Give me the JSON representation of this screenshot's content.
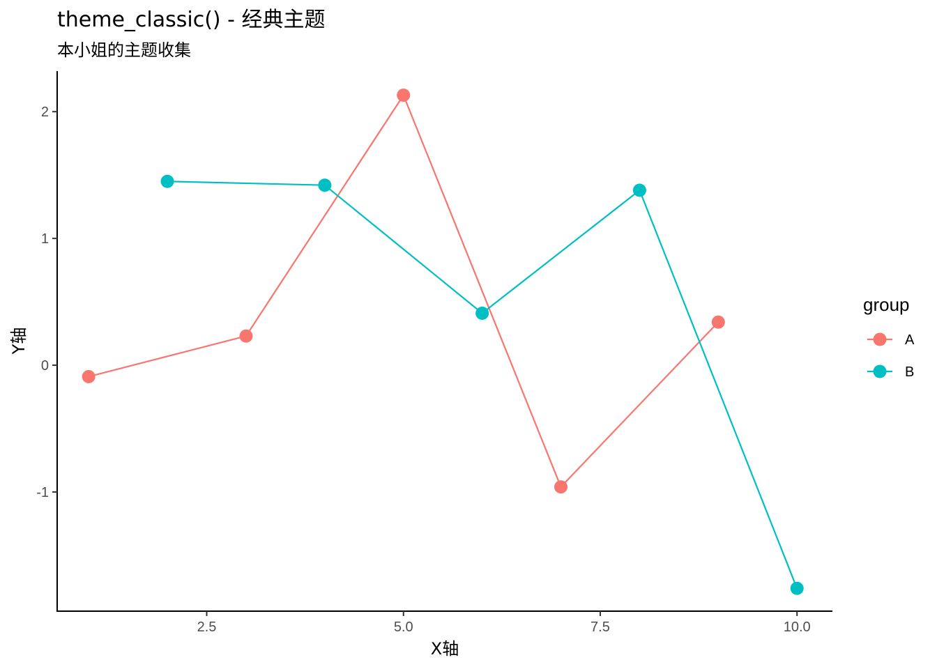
{
  "chart_data": {
    "type": "line",
    "title": "theme_classic() - 经典主题",
    "subtitle": "本小姐的主题收集",
    "xlabel": "X轴",
    "ylabel": "Y轴",
    "xlim": [
      0.6,
      10.45
    ],
    "ylim": [
      -1.94,
      2.32
    ],
    "xticks": [
      2.5,
      5.0,
      7.5,
      10.0
    ],
    "xtick_labels": [
      "2.5",
      "5.0",
      "7.5",
      "10.0"
    ],
    "yticks": [
      -1,
      0,
      1,
      2
    ],
    "ytick_labels": [
      "-1",
      "0",
      "1",
      "2"
    ],
    "grid": false,
    "legend": {
      "title": "group",
      "position": "right"
    },
    "series": [
      {
        "name": "A",
        "color": "#F8766D",
        "x": [
          1,
          3,
          5,
          7,
          9
        ],
        "y": [
          -0.09,
          0.23,
          2.13,
          -0.96,
          0.34
        ]
      },
      {
        "name": "B",
        "color": "#00BFC4",
        "x": [
          2,
          4,
          6,
          8,
          10
        ],
        "y": [
          1.45,
          1.42,
          0.41,
          1.38,
          -1.76
        ]
      }
    ]
  }
}
